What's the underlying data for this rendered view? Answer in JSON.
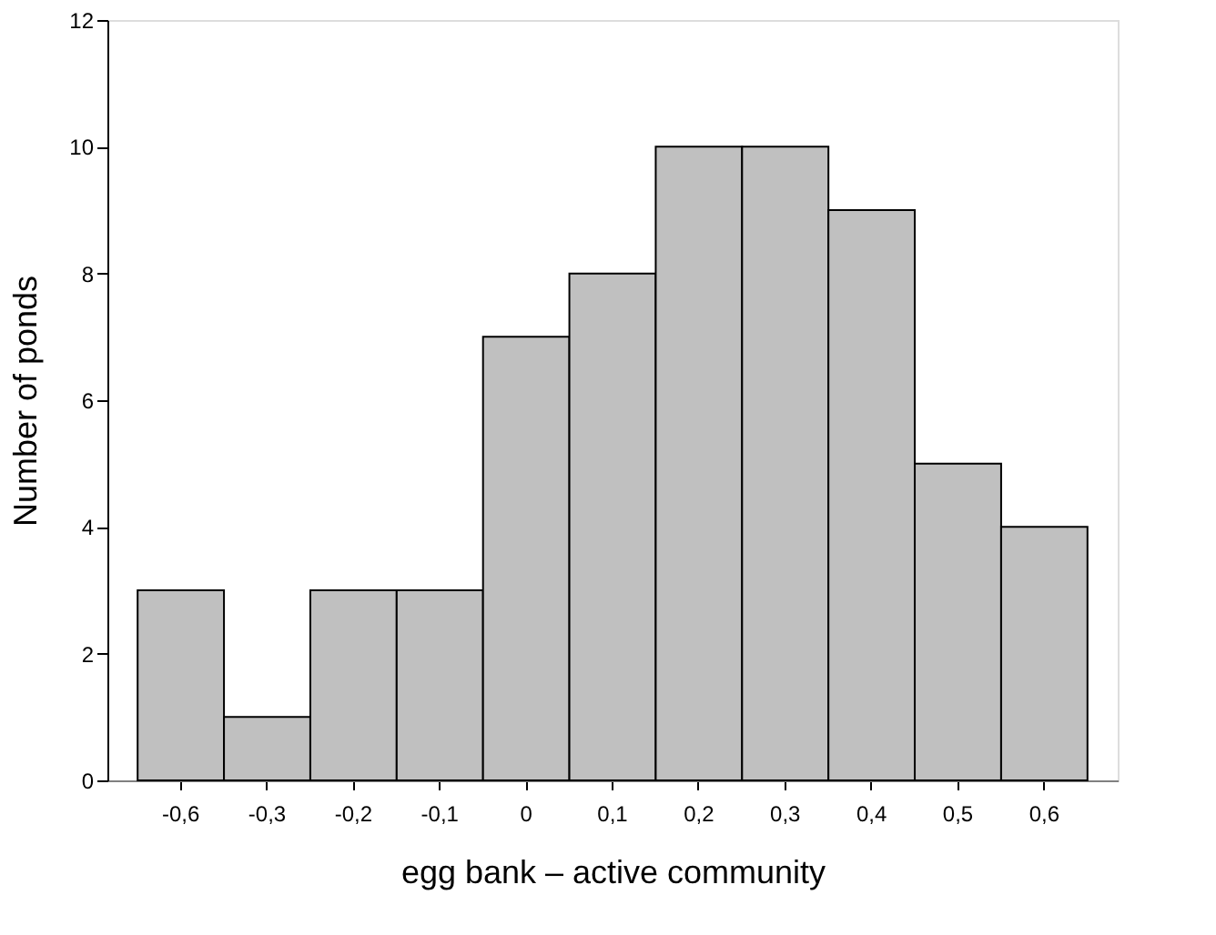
{
  "chart_data": {
    "type": "bar",
    "xlabel": "egg bank – active community",
    "ylabel": "Number of ponds",
    "categories": [
      "-0,6",
      "-0,3",
      "-0,2",
      "-0,1",
      "0",
      "0,1",
      "0,2",
      "0,3",
      "0,4",
      "0,5",
      "0,6"
    ],
    "values": [
      3,
      1,
      3,
      3,
      7,
      8,
      10,
      10,
      9,
      5,
      4
    ],
    "color": "#c0c0c0",
    "ylim": [
      0,
      12
    ],
    "yticks": [
      0,
      2,
      4,
      6,
      8,
      10,
      12
    ],
    "grid": false
  }
}
